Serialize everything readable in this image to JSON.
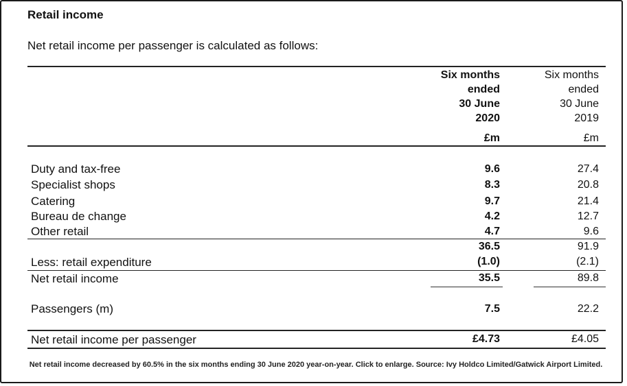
{
  "heading": "Retail income",
  "intro": "Net retail income per passenger is calculated as follows:",
  "columns": [
    {
      "lines": [
        "Six months",
        "ended",
        "30 June",
        "2020"
      ],
      "unit": "£m"
    },
    {
      "lines": [
        "Six months",
        "ended",
        "30 June",
        "2019"
      ],
      "unit": "£m"
    }
  ],
  "rows": [
    {
      "label": "Duty and tax-free",
      "v2020": "9.6",
      "v2019": "27.4"
    },
    {
      "label": "Specialist shops",
      "v2020": "8.3",
      "v2019": "20.8"
    },
    {
      "label": "Catering",
      "v2020": "9.7",
      "v2019": "21.4"
    },
    {
      "label": "Bureau de change",
      "v2020": "4.2",
      "v2019": "12.7"
    },
    {
      "label": "Other retail",
      "v2020": "4.7",
      "v2019": "9.6"
    },
    {
      "label": "",
      "v2020": "36.5",
      "v2019": "91.9"
    },
    {
      "label": "Less: retail expenditure",
      "v2020": "(1.0)",
      "v2019": "(2.1)"
    },
    {
      "label": "Net retail income",
      "v2020": "35.5",
      "v2019": "89.8"
    },
    {
      "label": "Passengers (m)",
      "v2020": "7.5",
      "v2019": "22.2"
    },
    {
      "label": "Net retail income per passenger",
      "v2020": "£4.73",
      "v2019": "£4.05"
    }
  ],
  "caption": "Net retail income decreased by 60.5% in the six months ending 30 June 2020 year-on-year. Click to enlarge. Source: Ivy Holdco Limited/Gatwick Airport Limited."
}
